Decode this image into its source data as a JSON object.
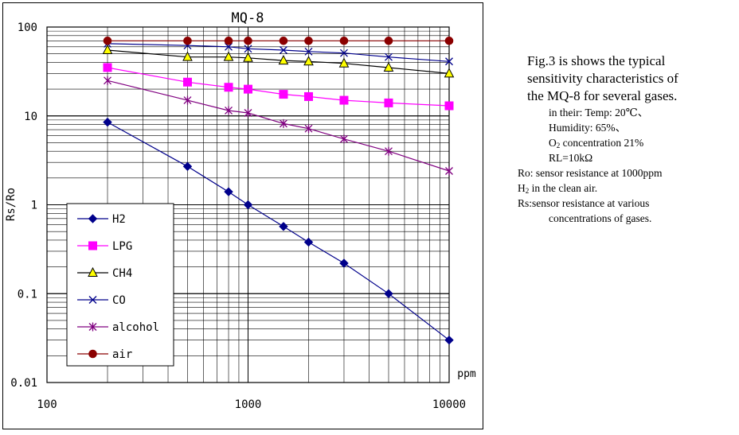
{
  "chart_data": {
    "type": "line",
    "title": "MQ-8",
    "xlabel": "ppm",
    "ylabel": "Rs/Ro",
    "x_scale": "log",
    "y_scale": "log",
    "xlim": [
      100,
      10000
    ],
    "ylim": [
      0.01,
      100
    ],
    "x_tick_labels": [
      "100",
      "1000",
      "10000"
    ],
    "y_tick_labels": [
      "0.01",
      "0.1",
      "1",
      "10",
      "100"
    ],
    "grid": true,
    "legend_position": "lower-left",
    "series": [
      {
        "name": "H2",
        "color": "#00008b",
        "marker": "diamond",
        "x": [
          200,
          500,
          800,
          1000,
          1500,
          2000,
          3000,
          5000,
          10000
        ],
        "y": [
          8.5,
          2.7,
          1.4,
          1.0,
          0.57,
          0.38,
          0.22,
          0.1,
          0.03
        ]
      },
      {
        "name": "LPG",
        "color": "#ff00ff",
        "marker": "square",
        "x": [
          200,
          500,
          800,
          1000,
          1500,
          2000,
          3000,
          5000,
          10000
        ],
        "y": [
          35,
          24,
          21,
          20,
          17.5,
          16.5,
          15,
          14,
          13
        ]
      },
      {
        "name": "CH4",
        "color": "#000000",
        "marker": "triangle",
        "x": [
          200,
          500,
          800,
          1000,
          1500,
          2000,
          3000,
          5000,
          10000
        ],
        "y": [
          55,
          46,
          46,
          45,
          42,
          41,
          39,
          35,
          30
        ]
      },
      {
        "name": "CO",
        "color": "#00008b",
        "marker": "x",
        "x": [
          200,
          500,
          800,
          1000,
          1500,
          2000,
          3000,
          5000,
          10000
        ],
        "y": [
          65,
          62,
          60,
          57,
          55,
          53,
          51,
          46,
          41
        ]
      },
      {
        "name": "alcohol",
        "color": "#800080",
        "marker": "asterisk",
        "x": [
          200,
          500,
          800,
          1000,
          1500,
          2000,
          3000,
          5000,
          10000
        ],
        "y": [
          25,
          15,
          11.5,
          10.8,
          8.2,
          7.2,
          5.5,
          4.0,
          2.4
        ]
      },
      {
        "name": "air",
        "color": "#8b0000",
        "marker": "circle",
        "x": [
          200,
          500,
          800,
          1000,
          1500,
          2000,
          3000,
          5000,
          10000
        ],
        "y": [
          70,
          70,
          70,
          70,
          70,
          70,
          70,
          70,
          70
        ]
      }
    ]
  },
  "caption": {
    "line1": "Fig.3 is shows the typical",
    "line2": "sensitivity characteristics of",
    "line3": "the MQ-8 for several gases.",
    "cond1": "in their: Temp: 20℃、",
    "cond2": "Humidity: 65%、",
    "cond3_pre": "O",
    "cond3_sub": "2",
    "cond3_post": " concentration 21%",
    "cond4": "RL=10kΩ",
    "ro1": "Ro:  sensor resistance at 1000ppm",
    "ro2_pre": "H",
    "ro2_sub": "2",
    "ro2_post": " in the clean air.",
    "rs1": "Rs:sensor resistance at various",
    "rs2": "concentrations of gases."
  }
}
